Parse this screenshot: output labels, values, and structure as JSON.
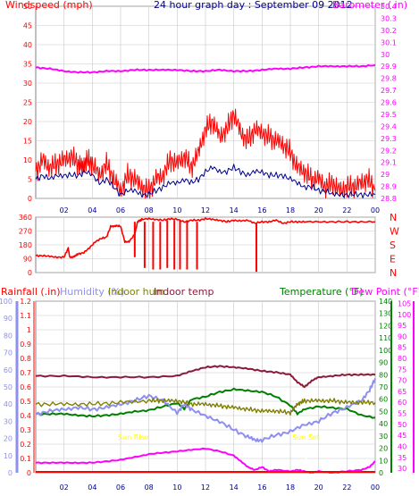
{
  "colors": {
    "red": "#ff0000",
    "blue": "#00008b",
    "magenta": "#ff00ff",
    "darkred": "#8b1a3a",
    "green": "#008000",
    "olive": "#808000",
    "lavender": "#8f8fef",
    "yellow": "#ffff00",
    "grid": "#c8c8c8"
  },
  "chart_data": [
    {
      "type": "line",
      "panel": "wind-baro",
      "title": "24 hour graph day : September 09 2012",
      "left_label": "Windspeed (mph)",
      "right_label": "Barometer (.in)",
      "left_ticks": [
        "0",
        "5",
        "10",
        "15",
        "20",
        "25",
        "30",
        "35",
        "40",
        "45",
        "50"
      ],
      "right_ticks": [
        "28.8",
        "28.9",
        "29",
        "29.1",
        "29.2",
        "29.3",
        "29.4",
        "29.5",
        "29.6",
        "29.7",
        "29.8",
        "29.9",
        "30",
        "30.1",
        "30.2",
        "30.3",
        "30.4"
      ],
      "x_ticks": [
        "02",
        "04",
        "06",
        "08",
        "10",
        "12",
        "14",
        "16",
        "18",
        "20",
        "22",
        "00"
      ],
      "ylim_left": [
        0,
        50
      ],
      "ylim_right": [
        28.8,
        30.4
      ],
      "series": [
        {
          "key": "gust",
          "axis": "left",
          "x": [
            0,
            0.5,
            1,
            1.5,
            2,
            2.5,
            3,
            3.3,
            3.6,
            4,
            4.5,
            5,
            5.5,
            6,
            6.5,
            7,
            7.5,
            8,
            8.5,
            9,
            9.5,
            10,
            10.5,
            11,
            11.5,
            12,
            12.5,
            13,
            13.5,
            14,
            14.5,
            15,
            15.5,
            16,
            16.5,
            17,
            17.5,
            18,
            18.5,
            19,
            19.5,
            20,
            20.5,
            21,
            21.5,
            22,
            22.5,
            23,
            23.5,
            24
          ],
          "values": [
            7,
            10,
            8,
            9,
            10,
            11,
            9,
            8,
            10,
            9,
            6,
            9,
            5,
            2,
            6,
            5,
            3,
            2,
            5,
            6,
            10,
            9,
            11,
            8,
            12,
            18,
            20,
            16,
            18,
            22,
            17,
            15,
            18,
            17,
            16,
            15,
            14,
            12,
            8,
            7,
            5,
            5,
            3,
            4,
            2,
            3,
            3,
            4,
            5,
            2
          ]
        },
        {
          "key": "avg",
          "axis": "left",
          "x": [
            0,
            0.5,
            1,
            1.5,
            2,
            2.5,
            3,
            3.5,
            4,
            4.5,
            5,
            5.5,
            6,
            6.5,
            7,
            7.5,
            8,
            8.5,
            9,
            9.5,
            10,
            10.5,
            11,
            11.5,
            12,
            12.5,
            13,
            13.5,
            14,
            14.5,
            15,
            15.5,
            16,
            16.5,
            17,
            17.5,
            18,
            18.5,
            19,
            19.5,
            20,
            20.5,
            21,
            21.5,
            22,
            22.5,
            23,
            23.5,
            24
          ],
          "values": [
            5,
            6,
            5,
            6,
            6,
            6,
            6,
            7,
            6,
            4,
            5,
            3,
            1,
            2,
            2,
            1,
            1,
            2,
            3,
            4,
            4,
            5,
            4,
            5,
            7,
            8,
            7,
            7,
            8,
            7,
            6,
            7,
            7,
            6,
            6,
            6,
            5,
            4,
            3,
            3,
            2,
            2,
            1,
            1,
            1,
            1,
            1,
            1,
            1
          ]
        },
        {
          "key": "baro",
          "axis": "right",
          "x": [
            0,
            1,
            2,
            3,
            4,
            5,
            6,
            7,
            8,
            9,
            10,
            11,
            12,
            13,
            14,
            15,
            16,
            17,
            18,
            19,
            20,
            21,
            22,
            23,
            24
          ],
          "values": [
            29.89,
            29.88,
            29.86,
            29.85,
            29.85,
            29.86,
            29.86,
            29.87,
            29.87,
            29.87,
            29.87,
            29.86,
            29.86,
            29.87,
            29.86,
            29.86,
            29.87,
            29.88,
            29.88,
            29.89,
            29.9,
            29.9,
            29.9,
            29.9,
            29.91
          ]
        }
      ]
    },
    {
      "type": "line",
      "panel": "wind-direction",
      "left_ticks": [
        "0",
        "90",
        "180",
        "270",
        "360"
      ],
      "right_ticks": [
        "N",
        "W",
        "S",
        "E",
        "N"
      ],
      "ylim": [
        0,
        360
      ],
      "series": [
        {
          "key": "dir",
          "x": [
            0,
            0.5,
            1,
            1.5,
            2,
            2.3,
            2.4,
            2.6,
            2.8,
            3,
            3.4,
            3.8,
            4.2,
            4.6,
            5,
            5.3,
            5.5,
            5.7,
            6,
            6.3,
            6.6,
            7,
            7.2,
            7.4,
            7.5,
            8,
            8.5,
            9,
            9.5,
            10,
            10.5,
            11,
            11.5,
            12,
            12.5,
            13,
            13.5,
            14,
            14.5,
            15,
            15.5,
            16,
            16.5,
            17,
            17.5,
            18,
            18.5,
            19,
            20,
            21,
            22,
            23,
            24
          ],
          "values": [
            110,
            110,
            105,
            100,
            100,
            160,
            100,
            100,
            110,
            120,
            130,
            160,
            200,
            220,
            230,
            300,
            300,
            305,
            300,
            200,
            200,
            250,
            330,
            340,
            345,
            350,
            345,
            340,
            350,
            345,
            330,
            340,
            340,
            350,
            345,
            340,
            330,
            340,
            335,
            340,
            320,
            330,
            330,
            340,
            320,
            330,
            330,
            330,
            330,
            330,
            330,
            330,
            330
          ]
        }
      ],
      "spikes": [
        {
          "x": 7.0,
          "from": 330,
          "to": 100
        },
        {
          "x": 7.7,
          "from": 330,
          "to": 30
        },
        {
          "x": 8.3,
          "from": 330,
          "to": 20
        },
        {
          "x": 8.8,
          "from": 330,
          "to": 20
        },
        {
          "x": 9.3,
          "from": 340,
          "to": 30
        },
        {
          "x": 9.8,
          "from": 340,
          "to": 20
        },
        {
          "x": 10.2,
          "from": 340,
          "to": 20
        },
        {
          "x": 10.7,
          "from": 340,
          "to": 20
        },
        {
          "x": 11.4,
          "from": 330,
          "to": 20
        },
        {
          "x": 15.6,
          "from": 320,
          "to": 5
        }
      ]
    },
    {
      "type": "line",
      "panel": "rain-temp-humidity",
      "labels": {
        "rain": "Rainfall (.in)",
        "humidity": "Humidity (%)",
        "indoor_hum": "Indoor hum",
        "indoor_temp": "Indoor temp",
        "temperature": "Temperature (°F)",
        "dewpoint": "Dew Point (°F)"
      },
      "rain_ticks": [
        "0",
        "0.1",
        "0.2",
        "0.3",
        "0.4",
        "0.5",
        "0.6",
        "0.7",
        "0.8",
        "0.9",
        "1",
        "1.1",
        "1.2"
      ],
      "hum_ticks": [
        "0",
        "10",
        "20",
        "30",
        "40",
        "50",
        "60",
        "70",
        "80",
        "90",
        "100"
      ],
      "temp_ticks": [
        "0",
        "10",
        "20",
        "30",
        "40",
        "50",
        "60",
        "70",
        "80",
        "90",
        "100",
        "110",
        "120",
        "130",
        "140"
      ],
      "dew_ticks": [
        "30",
        "35",
        "40",
        "45",
        "50",
        "55",
        "60",
        "65",
        "70",
        "75",
        "80",
        "85",
        "90",
        "95",
        "100",
        "105"
      ],
      "yellow_labels": [
        {
          "text": "Sun Rise",
          "x": 6.9,
          "level": 0.23
        },
        {
          "text": "Sun Set",
          "x": 19.1,
          "level": 0.23
        }
      ],
      "series": [
        {
          "key": "indoor_temp",
          "x": [
            0,
            2,
            4,
            6,
            8,
            10,
            11,
            12,
            13,
            14,
            15,
            16,
            17,
            18,
            18.5,
            19,
            19.5,
            20,
            21,
            22,
            23,
            24
          ],
          "values": [
            79,
            79,
            78,
            78,
            78,
            79,
            83,
            86,
            87,
            86,
            85,
            83,
            82,
            80,
            74,
            70,
            75,
            78,
            79,
            80,
            80,
            80
          ]
        },
        {
          "key": "temperature",
          "x": [
            0,
            1,
            2,
            3,
            4,
            5,
            6,
            7,
            8,
            9,
            10,
            10.5,
            11,
            12,
            13,
            14,
            15,
            16,
            17,
            18,
            18.5,
            19,
            20,
            21,
            22,
            23,
            24
          ],
          "values": [
            48,
            48,
            48,
            47,
            46,
            47,
            48,
            50,
            51,
            54,
            57,
            52,
            60,
            62,
            66,
            68,
            67,
            66,
            62,
            55,
            48,
            52,
            54,
            53,
            52,
            47,
            45
          ]
        },
        {
          "key": "humidity",
          "x": [
            0,
            1,
            2,
            3,
            4,
            5,
            6,
            7,
            8,
            9,
            10,
            10.5,
            11,
            12,
            13,
            14,
            15,
            15.5,
            16,
            17,
            18,
            19,
            20,
            21,
            22,
            23,
            23.6,
            24
          ],
          "values": [
            34,
            36,
            37,
            38,
            37,
            38,
            40,
            42,
            45,
            42,
            35,
            40,
            37,
            33,
            30,
            25,
            21,
            19,
            19,
            22,
            24,
            28,
            30,
            35,
            38,
            42,
            48,
            55
          ]
        },
        {
          "key": "indoor_hum",
          "x": [
            0,
            2,
            4,
            6,
            8,
            9,
            10,
            11,
            12,
            13,
            14,
            15,
            16,
            17,
            18,
            18.5,
            19,
            20,
            21,
            22,
            23,
            24
          ],
          "values": [
            40,
            40,
            40,
            41,
            42,
            42,
            42,
            40,
            40,
            39,
            38,
            37,
            36,
            36,
            35,
            40,
            42,
            42,
            42,
            41,
            41,
            41
          ]
        },
        {
          "key": "dewpoint",
          "x": [
            0,
            1,
            2,
            3,
            4,
            5,
            6,
            7,
            8,
            9,
            10,
            11,
            12,
            13,
            14,
            14.5,
            15,
            15.5,
            16,
            16.5,
            17,
            18,
            18.5,
            19,
            19.5,
            20,
            21,
            22,
            23,
            23.6,
            24
          ],
          "values": [
            0.07,
            0.07,
            0.07,
            0.07,
            0.07,
            0.08,
            0.09,
            0.11,
            0.13,
            0.14,
            0.15,
            0.16,
            0.17,
            0.15,
            0.12,
            0.08,
            0.04,
            0.02,
            0.04,
            0.01,
            0.02,
            0.01,
            0.02,
            0.01,
            0,
            0.01,
            0.0,
            0.01,
            0.02,
            0.04,
            0.08
          ]
        },
        {
          "key": "rain",
          "x": [
            0,
            24
          ],
          "values": [
            0,
            0
          ]
        }
      ]
    }
  ]
}
